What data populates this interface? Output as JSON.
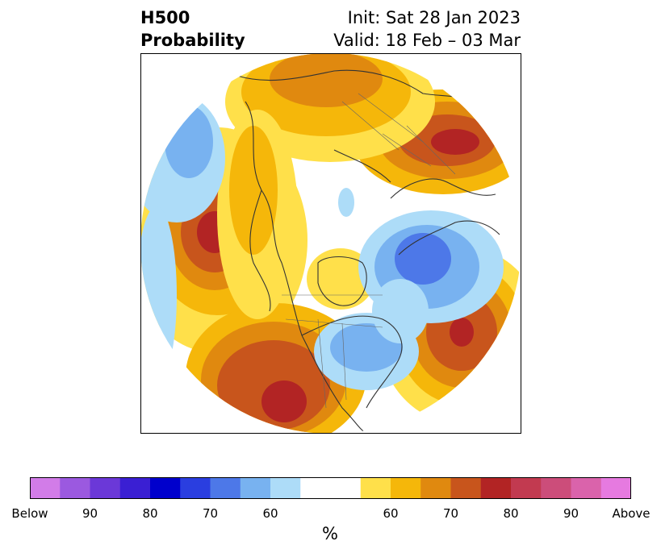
{
  "title": {
    "left_line1": "H500",
    "left_line2": "Probability",
    "right_line1": "Init: Sat 28 Jan 2023",
    "right_line2": "Valid: 18 Feb – 03 Mar"
  },
  "colorbar": {
    "colors": [
      "#d27ce8",
      "#9b59e0",
      "#6b38d8",
      "#3a1fd3",
      "#0000cc",
      "#2a3ee0",
      "#4d78e8",
      "#78b2f0",
      "#addcf8",
      "#ffffff",
      "#ffffff",
      "#ffe04a",
      "#f5b70a",
      "#e0890f",
      "#c8551c",
      "#b22424",
      "#c23a50",
      "#cc4d7a",
      "#da63ab",
      "#e67ae0"
    ],
    "tick_labels": [
      "Below",
      "90",
      "80",
      "70",
      "60",
      "60",
      "70",
      "80",
      "90",
      "Above"
    ],
    "units": "%"
  },
  "map": {
    "projection": "north-polar-stereographic",
    "anomalies": [
      {
        "region": "Gulf of Alaska / NE Pacific",
        "sign": "above",
        "peak_percent": 80
      },
      {
        "region": "Southwestern United States / Northern Mexico",
        "sign": "above",
        "peak_percent": 80
      },
      {
        "region": "Central North Atlantic",
        "sign": "above",
        "peak_percent": 80
      },
      {
        "region": "Northern Russia",
        "sign": "above",
        "peak_percent": 80
      },
      {
        "region": "Eastern Siberia / Chukotka",
        "sign": "above",
        "peak_percent": 70
      },
      {
        "region": "Greenland / Canadian Arctic Archipelago",
        "sign": "above",
        "peak_percent": 60
      },
      {
        "region": "Northern Europe / Scandinavia",
        "sign": "below",
        "peak_percent": 80
      },
      {
        "region": "Eastern Canada / NE United States",
        "sign": "below",
        "peak_percent": 70
      },
      {
        "region": "North Pacific west of Alaska",
        "sign": "below",
        "peak_percent": 70
      }
    ]
  }
}
